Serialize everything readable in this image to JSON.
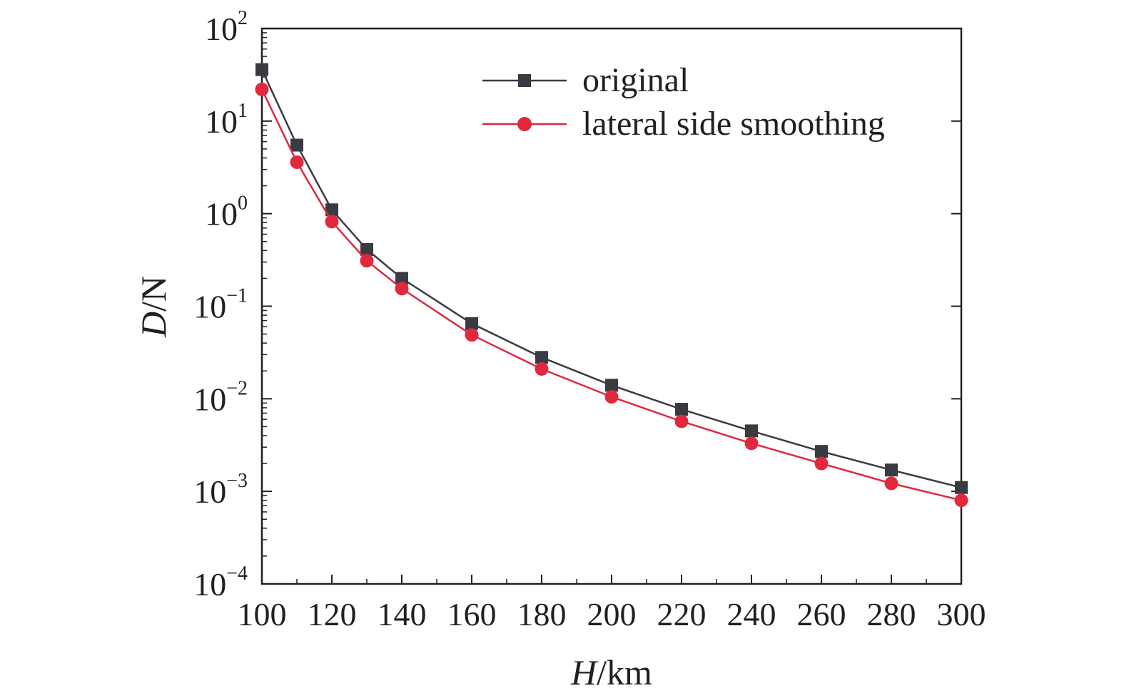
{
  "chart_data": {
    "type": "line",
    "xlabel_var": "H",
    "xlabel_unit": "/km",
    "ylabel_var": "D",
    "ylabel_unit": "/N",
    "y_scale": "log",
    "xlim": [
      100,
      300
    ],
    "ylim": [
      0.0001,
      100
    ],
    "x_ticks": [
      100,
      120,
      140,
      160,
      180,
      200,
      220,
      240,
      260,
      280,
      300
    ],
    "x_tick_labels": [
      "100",
      "120",
      "140",
      "160",
      "180",
      "200",
      "220",
      "240",
      "260",
      "280",
      "300"
    ],
    "y_ticks": [
      {
        "value": 100,
        "base": "10",
        "exp": "2"
      },
      {
        "value": 10,
        "base": "10",
        "exp": "1"
      },
      {
        "value": 1,
        "base": "10",
        "exp": "0"
      },
      {
        "value": 0.1,
        "base": "10",
        "exp": "−1"
      },
      {
        "value": 0.01,
        "base": "10",
        "exp": "−2"
      },
      {
        "value": 0.001,
        "base": "10",
        "exp": "−3"
      },
      {
        "value": 0.0001,
        "base": "10",
        "exp": "−4"
      }
    ],
    "grid": false,
    "legend_position": "top-right",
    "x": [
      100,
      110,
      120,
      130,
      140,
      160,
      180,
      200,
      220,
      240,
      260,
      280,
      300
    ],
    "series": [
      {
        "name": "original",
        "color": "#3a3a42",
        "marker": "square",
        "values": [
          36,
          5.5,
          1.1,
          0.41,
          0.2,
          0.065,
          0.028,
          0.014,
          0.0077,
          0.0045,
          0.0027,
          0.0017,
          0.0011
        ]
      },
      {
        "name": "lateral side smoothing",
        "color": "#e0283e",
        "marker": "circle",
        "values": [
          22,
          3.6,
          0.82,
          0.31,
          0.155,
          0.049,
          0.021,
          0.0105,
          0.0057,
          0.0033,
          0.002,
          0.00122,
          0.0008
        ]
      }
    ]
  }
}
